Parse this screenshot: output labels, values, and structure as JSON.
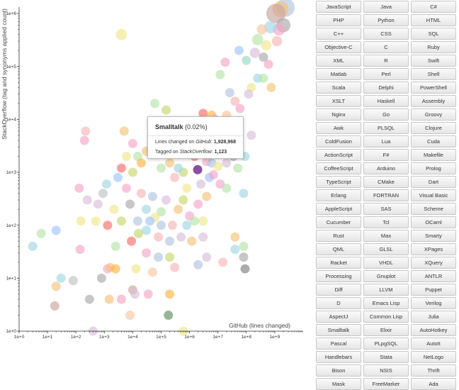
{
  "chart_data": {
    "type": "scatter",
    "xlabel": "GitHub (lines changed)",
    "ylabel": "StackOverflow (tag and synonyms applied count)",
    "x_scale": "log",
    "y_scale": "log",
    "xlim": [
      1,
      10000000000.0
    ],
    "ylim": [
      1,
      1000000.0
    ],
    "x_ticks": [
      "1e+0",
      "1e+1",
      "1e+2",
      "1e+3",
      "1e+4",
      "1e+5",
      "1e+6",
      "1e+7",
      "1e+8",
      "1e+9"
    ],
    "y_ticks": [
      "1e+0",
      "1e+1",
      "1e+2",
      "1e+3",
      "1e+4",
      "1e+5",
      "1e+6"
    ],
    "grid": false,
    "highlighted": {
      "name": "Smalltalk",
      "x": 1928968,
      "y": 1123,
      "color": "#7d3c98"
    },
    "points": [
      {
        "x": 2400000000.0,
        "y": 1300000.0,
        "color": "#b0c4de",
        "size": 18
      },
      {
        "x": 1600000000.0,
        "y": 1200000.0,
        "color": "#f4c27a",
        "size": 16
      },
      {
        "x": 1100000000.0,
        "y": 1000000.0,
        "color": "#c9a5a0",
        "size": 19
      },
      {
        "x": 2000000000.0,
        "y": 600000.0,
        "color": "#a9a9a9",
        "size": 14
      },
      {
        "x": 1400000000.0,
        "y": 500000.0,
        "color": "#f4a6c8",
        "size": 12
      },
      {
        "x": 700000000.0,
        "y": 550000.0,
        "color": "#9fd7e3",
        "size": 12
      },
      {
        "x": 350000000.0,
        "y": 500000.0,
        "color": "#f7c6a0",
        "size": 10
      },
      {
        "x": 250000000.0,
        "y": 320000.0,
        "color": "#b6e3a8",
        "size": 11
      },
      {
        "x": 1200000000.0,
        "y": 300000.0,
        "color": "#f7b6b6",
        "size": 10
      },
      {
        "x": 500000000.0,
        "y": 250000.0,
        "color": "#f0e68c",
        "size": 10
      },
      {
        "x": 200000000.0,
        "y": 180000.0,
        "color": "#d8bfd8",
        "size": 10
      },
      {
        "x": 400000000.0,
        "y": 150000.0,
        "color": "#a9a9a9",
        "size": 9
      },
      {
        "x": 100000000.0,
        "y": 130000.0,
        "color": "#98d8c8",
        "size": 9
      },
      {
        "x": 600000000.0,
        "y": 110000.0,
        "color": "#f4a6c8",
        "size": 9
      },
      {
        "x": 55000000.0,
        "y": 200000.0,
        "color": "#a0c4ff",
        "size": 9
      },
      {
        "x": 18000000.0,
        "y": 120000.0,
        "color": "#f4a6c8",
        "size": 9
      },
      {
        "x": 12000000.0,
        "y": 70000.0,
        "color": "#b6e3a8",
        "size": 9
      },
      {
        "x": 250000000.0,
        "y": 60000.0,
        "color": "#9fd7e3",
        "size": 9
      },
      {
        "x": 400000000.0,
        "y": 60000.0,
        "color": "#b6e3a8",
        "size": 9
      },
      {
        "x": 150000000.0,
        "y": 40000.0,
        "color": "#f0e68c",
        "size": 9
      },
      {
        "x": 750000000.0,
        "y": 40000.0,
        "color": "#f4c27a",
        "size": 9
      },
      {
        "x": 26000000.0,
        "y": 32000.0,
        "color": "#b0c4de",
        "size": 9
      },
      {
        "x": 120000000.0,
        "y": 30000.0,
        "color": "#d8bfd8",
        "size": 9
      },
      {
        "x": 40000000.0,
        "y": 22000.0,
        "color": "#f7b6b6",
        "size": 9
      },
      {
        "x": 60000000.0,
        "y": 16000.0,
        "color": "#f4a6c8",
        "size": 9
      },
      {
        "x": 20000000.0,
        "y": 12000.0,
        "color": "#f7c6a0",
        "size": 9
      },
      {
        "x": 3000000.0,
        "y": 13000.0,
        "color": "#ff6b6b",
        "size": 9
      },
      {
        "x": 6000000.0,
        "y": 12000.0,
        "color": "#ffb347",
        "size": 9
      },
      {
        "x": 8000000.0,
        "y": 10000.0,
        "color": "#f4a6c8",
        "size": 9
      },
      {
        "x": 150000.0,
        "y": 15000.0,
        "color": "#c5d86d",
        "size": 9
      },
      {
        "x": 30000000.0,
        "y": 8000.0,
        "color": "#c0e6f5",
        "size": 9
      },
      {
        "x": 45000000.0,
        "y": 7000.0,
        "color": "#a9a9a9",
        "size": 9
      },
      {
        "x": 150000000.0,
        "y": 5000.0,
        "color": "#d8bfd8",
        "size": 9
      },
      {
        "x": 5000000.0,
        "y": 6000.0,
        "color": "#f4a6c8",
        "size": 9
      },
      {
        "x": 2000000.0,
        "y": 4000.0,
        "color": "#f7b6b6",
        "size": 9
      },
      {
        "x": 300000.0,
        "y": 3000.0,
        "color": "#b6e3a8",
        "size": 9
      },
      {
        "x": 800000.0,
        "y": 2500.0,
        "color": "#f7c6a0",
        "size": 9
      },
      {
        "x": 1500000.0,
        "y": 2000.0,
        "color": "#ff6b6b",
        "size": 9
      },
      {
        "x": 4000000.0,
        "y": 1600.0,
        "color": "#f4a6c8",
        "size": 9
      },
      {
        "x": 6000000.0,
        "y": 1500.0,
        "color": "#b0c4de",
        "size": 9
      },
      {
        "x": 10000000.0,
        "y": 1300.0,
        "color": "#f0e68c",
        "size": 9
      },
      {
        "x": 20000000.0,
        "y": 1500.0,
        "color": "#d8bfd8",
        "size": 9
      },
      {
        "x": 35000000.0,
        "y": 2000.0,
        "color": "#a9a9a9",
        "size": 9
      },
      {
        "x": 90000000.0,
        "y": 2000.0,
        "color": "#9fd7e3",
        "size": 9
      },
      {
        "x": 9000000.0,
        "y": 2500.0,
        "color": "#ffb347",
        "size": 9
      },
      {
        "x": 200000.0,
        "y": 1500.0,
        "color": "#f4c27a",
        "size": 9
      },
      {
        "x": 100000.0,
        "y": 1200.0,
        "color": "#b6e3a8",
        "size": 9
      },
      {
        "x": 600000.0,
        "y": 1000.0,
        "color": "#c5d86d",
        "size": 9
      },
      {
        "x": 300000.0,
        "y": 800.0,
        "color": "#f7b6b6",
        "size": 9
      },
      {
        "x": 5000000.0,
        "y": 800.0,
        "color": "#a0c4ff",
        "size": 9
      },
      {
        "x": 12000000.0,
        "y": 600.0,
        "color": "#f4a6c8",
        "size": 9
      },
      {
        "x": 2500000.0,
        "y": 600.0,
        "color": "#d8bfd8",
        "size": 9
      },
      {
        "x": 800000.0,
        "y": 500.0,
        "color": "#f0e68c",
        "size": 9
      },
      {
        "x": 20000000.0,
        "y": 500.0,
        "color": "#b6e3a8",
        "size": 9
      },
      {
        "x": 80000000.0,
        "y": 400.0,
        "color": "#9fd7e3",
        "size": 9
      },
      {
        "x": 30000.0,
        "y": 2500.0,
        "color": "#f4c27a",
        "size": 9
      },
      {
        "x": 15000.0,
        "y": 2000.0,
        "color": "#b6e3a8",
        "size": 9
      },
      {
        "x": 6000.0,
        "y": 2000.0,
        "color": "#f0e68c",
        "size": 9
      },
      {
        "x": 20000.0,
        "y": 1500.0,
        "color": "#ffb347",
        "size": 9
      },
      {
        "x": 4000.0,
        "y": 1200.0,
        "color": "#ff6b6b",
        "size": 9
      },
      {
        "x": 10000.0,
        "y": 1000.0,
        "color": "#c5d86d",
        "size": 9
      },
      {
        "x": 3000.0,
        "y": 800.0,
        "color": "#a0c4ff",
        "size": 9
      },
      {
        "x": 1200.0,
        "y": 600.0,
        "color": "#9fd7e3",
        "size": 9
      },
      {
        "x": 6000.0,
        "y": 500.0,
        "color": "#f4a6c8",
        "size": 9
      },
      {
        "x": 20000.0,
        "y": 400.0,
        "color": "#f7b6b6",
        "size": 9
      },
      {
        "x": 50000.0,
        "y": 350.0,
        "color": "#b0c4de",
        "size": 9
      },
      {
        "x": 150000.0,
        "y": 300.0,
        "color": "#d8bfd8",
        "size": 9
      },
      {
        "x": 2200.0,
        "y": 200.0,
        "color": "#f0e68c",
        "size": 9
      },
      {
        "x": 600.0,
        "y": 250.0,
        "color": "#d8bfd8",
        "size": 9
      },
      {
        "x": 8000.0,
        "y": 250.0,
        "color": "#a9a9a9",
        "size": 9
      },
      {
        "x": 30000.0,
        "y": 200.0,
        "color": "#9fd7e3",
        "size": 9
      },
      {
        "x": 100000.0,
        "y": 180.0,
        "color": "#b6e3a8",
        "size": 9
      },
      {
        "x": 400000.0,
        "y": 200.0,
        "color": "#f4c27a",
        "size": 9
      },
      {
        "x": 1000000.0,
        "y": 150.0,
        "color": "#f4a6c8",
        "size": 9
      },
      {
        "x": 3000000.0,
        "y": 120.0,
        "color": "#f0e68c",
        "size": 9
      },
      {
        "x": 15000.0,
        "y": 120.0,
        "color": "#b0c4de",
        "size": 9
      },
      {
        "x": 4000.0,
        "y": 120.0,
        "color": "#c5d86d",
        "size": 9
      },
      {
        "x": 1300.0,
        "y": 100.0,
        "color": "#ff6b6b",
        "size": 9
      },
      {
        "x": 500.0,
        "y": 120.0,
        "color": "#f0e68c",
        "size": 9
      },
      {
        "x": 150.0,
        "y": 120.0,
        "color": "#f0e68c",
        "size": 9
      },
      {
        "x": 20.0,
        "y": 80.0,
        "color": "#a0c4ff",
        "size": 9
      },
      {
        "x": 6.0,
        "y": 70.0,
        "color": "#b6e3a8",
        "size": 9
      },
      {
        "x": 3.0,
        "y": 40.0,
        "color": "#9fd7e3",
        "size": 9
      },
      {
        "x": 140.0,
        "y": 35.0,
        "color": "#f4a6c8",
        "size": 9
      },
      {
        "x": 2500.0,
        "y": 40.0,
        "color": "#b6e3a8",
        "size": 9
      },
      {
        "x": 9000.0,
        "y": 50.0,
        "color": "#ff6b6b",
        "size": 9
      },
      {
        "x": 16000.0,
        "y": 70.0,
        "color": "#c5d86d",
        "size": 9
      },
      {
        "x": 30000.0,
        "y": 80.0,
        "color": "#9fd7e3",
        "size": 9
      },
      {
        "x": 80000.0,
        "y": 60.0,
        "color": "#f7b6b6",
        "size": 9
      },
      {
        "x": 200000.0,
        "y": 50.0,
        "color": "#b0c4de",
        "size": 9
      },
      {
        "x": 500000.0,
        "y": 60.0,
        "color": "#d8bfd8",
        "size": 9
      },
      {
        "x": 1200000.0,
        "y": 50.0,
        "color": "#f4c27a",
        "size": 9
      },
      {
        "x": 40000000.0,
        "y": 60.0,
        "color": "#f4c27a",
        "size": 9
      },
      {
        "x": 80000000.0,
        "y": 40.0,
        "color": "#b6e3a8",
        "size": 9
      },
      {
        "x": 40000000.0,
        "y": 35.0,
        "color": "#9fd7e3",
        "size": 9
      },
      {
        "x": 30000.0,
        "y": 30.0,
        "color": "#f4a6c8",
        "size": 9
      },
      {
        "x": 80000.0,
        "y": 25.0,
        "color": "#b0c4de",
        "size": 9
      },
      {
        "x": 200000.0,
        "y": 25.0,
        "color": "#c5d86d",
        "size": 9
      },
      {
        "x": 4000000.0,
        "y": 25.0,
        "color": "#d8bfd8",
        "size": 9
      },
      {
        "x": 15000000.0,
        "y": 20.0,
        "color": "#f7b6b6",
        "size": 9
      },
      {
        "x": 80000000.0,
        "y": 25.0,
        "color": "#a9a9a9",
        "size": 9
      },
      {
        "x": 90000000.0,
        "y": 15.0,
        "color": "#7f7f7f",
        "size": 9
      },
      {
        "x": 300000.0,
        "y": 16.0,
        "color": "#f7b6b6",
        "size": 9
      },
      {
        "x": 2000000.0,
        "y": 18.0,
        "color": "#b0c4de",
        "size": 9
      },
      {
        "x": 1300.0,
        "y": 15.0,
        "color": "#f4a6c8",
        "size": 9
      },
      {
        "x": 1600.0,
        "y": 16.0,
        "color": "#f4c27a",
        "size": 9
      },
      {
        "x": 2500.0,
        "y": 15.0,
        "color": "#ffb347",
        "size": 9
      },
      {
        "x": 13000.0,
        "y": 15.0,
        "color": "#f0e68c",
        "size": 9
      },
      {
        "x": 50000.0,
        "y": 13.0,
        "color": "#f7c6a0",
        "size": 9
      },
      {
        "x": 30.0,
        "y": 10.0,
        "color": "#9fd7e3",
        "size": 9
      },
      {
        "x": 800.0,
        "y": 10.0,
        "color": "#a9a9a9",
        "size": 9
      },
      {
        "x": 20.0,
        "y": 7.0,
        "color": "#f4c27a",
        "size": 9
      },
      {
        "x": 80.0,
        "y": 9.0,
        "color": "#c0c0c0",
        "size": 9
      },
      {
        "x": 10000.0,
        "y": 6.0,
        "color": "#c9a5a0",
        "size": 9
      },
      {
        "x": 12000.0,
        "y": 5.0,
        "color": "#d8bfd8",
        "size": 9
      },
      {
        "x": 35000.0,
        "y": 5.0,
        "color": "#f4a6c8",
        "size": 9
      },
      {
        "x": 200000.0,
        "y": 5.0,
        "color": "#ffb347",
        "size": 9
      },
      {
        "x": 300.0,
        "y": 4.0,
        "color": "#a9a9a9",
        "size": 9
      },
      {
        "x": 1500.0,
        "y": 4.0,
        "color": "#f4c27a",
        "size": 9
      },
      {
        "x": 4000.0,
        "y": 4.0,
        "color": "#f4a6c8",
        "size": 9
      },
      {
        "x": 18.0,
        "y": 3.0,
        "color": "#c9a5a0",
        "size": 9
      },
      {
        "x": 8000.0,
        "y": 2.0,
        "color": "#f7c6a0",
        "size": 9
      },
      {
        "x": 180000.0,
        "y": 2.0,
        "color": "#5f8f5f",
        "size": 9
      },
      {
        "x": 400.0,
        "y": 1.0,
        "color": "#d8bfd8",
        "size": 9
      },
      {
        "x": 600000.0,
        "y": 1.0,
        "color": "#f0e68c",
        "size": 9
      },
      {
        "x": 4000.0,
        "y": 400000.0,
        "color": "#f0e68c",
        "size": 11
      },
      {
        "x": 200.0,
        "y": 4000.0,
        "color": "#f4a6c8",
        "size": 9
      },
      {
        "x": 130.0,
        "y": 500.0,
        "color": "#f4a6c8",
        "size": 9
      },
      {
        "x": 250.0,
        "y": 300.0,
        "color": "#d8bfd8",
        "size": 9
      },
      {
        "x": 900.0,
        "y": 400.0,
        "color": "#c0c0c0",
        "size": 9
      },
      {
        "x": 220.0,
        "y": 6000.0,
        "color": "#f7b6b6",
        "size": 9
      },
      {
        "x": 60000.0,
        "y": 20000.0,
        "color": "#b6e3a8",
        "size": 9
      },
      {
        "x": 5000.0,
        "y": 6000.0,
        "color": "#f4c27a",
        "size": 9
      },
      {
        "x": 10000.0,
        "y": 3500.0,
        "color": "#f4a6c8",
        "size": 9
      },
      {
        "x": 1200000.0,
        "y": 3500.0,
        "color": "#d8bfd8",
        "size": 9
      },
      {
        "x": 30000000.0,
        "y": 3000.0,
        "color": "#f7c6a0",
        "size": 9
      },
      {
        "x": 50000000.0,
        "y": 1200.0,
        "color": "#b6e3a8",
        "size": 9
      },
      {
        "x": 7000000.0,
        "y": 900.0,
        "color": "#f4a6c8",
        "size": 9
      },
      {
        "x": 4000000.0,
        "y": 350.0,
        "color": "#f4c27a",
        "size": 9
      },
      {
        "x": 2000000.0,
        "y": 250.0,
        "color": "#f4a6c8",
        "size": 9
      },
      {
        "x": 600000.0,
        "y": 300.0,
        "color": "#c5d86d",
        "size": 9
      },
      {
        "x": 3000000.0,
        "y": 60.0,
        "color": "#d8bfd8",
        "size": 9
      },
      {
        "x": 800000.0,
        "y": 100.0,
        "color": "#9fd7e3",
        "size": 9
      },
      {
        "x": 250000.0,
        "y": 100.0,
        "color": "#f7b6b6",
        "size": 9
      },
      {
        "x": 100000.0,
        "y": 100.0,
        "color": "#b0c4de",
        "size": 9
      },
      {
        "x": 60000.0,
        "y": 140.0,
        "color": "#f0e68c",
        "size": 9
      },
      {
        "x": 40000.0,
        "y": 120.0,
        "color": "#a0c4ff",
        "size": 9
      },
      {
        "x": 400000.0,
        "y": 1200.0,
        "color": "#9fd7e3",
        "size": 9
      },
      {
        "x": 1500000.0,
        "y": 120.0,
        "color": "#b6e3a8",
        "size": 9
      }
    ]
  },
  "tooltip": {
    "name": "Smalltalk",
    "percent": "(0.02%)",
    "lines_label": "Lines changed on ",
    "lines_source": "GitHub",
    "lines_value": "1,928,968",
    "tagged_label": "Tagged on ",
    "tagged_source": "StackOverflow",
    "tagged_value": "1,123"
  },
  "languages": [
    "JavaScript",
    "Java",
    "C#",
    "PHP",
    "Python",
    "HTML",
    "C++",
    "CSS",
    "SQL",
    "Objective-C",
    "C",
    "Ruby",
    "XML",
    "R",
    "Swift",
    "Matlab",
    "Perl",
    "Shell",
    "Scala",
    "Delphi",
    "PowerShell",
    "XSLT",
    "Haskell",
    "Assembly",
    "Nginx",
    "Go",
    "Groovy",
    "Awk",
    "PLSQL",
    "Clojure",
    "ColdFusion",
    "Lua",
    "Cuda",
    "ActionScript",
    "F#",
    "Makefile",
    "CoffeeScript",
    "Arduino",
    "Prolog",
    "TypeScript",
    "CMake",
    "Dart",
    "Erlang",
    "FORTRAN",
    "Visual Basic",
    "AppleScript",
    "SAS",
    "Scheme",
    "Cucumber",
    "Tcl",
    "OCaml",
    "Rust",
    "Max",
    "Smarty",
    "QML",
    "GLSL",
    "XPages",
    "Racket",
    "VHDL",
    "XQuery",
    "Processing",
    "Gnuplot",
    "ANTLR",
    "Diff",
    "LLVM",
    "Puppet",
    "D",
    "Emacs Lisp",
    "Verilog",
    "AspectJ",
    "Common Lisp",
    "Julia",
    "Smalltalk",
    "Elixir",
    "AutoHotkey",
    "Pascal",
    "PLpgSQL",
    "AutoIt",
    "Handlebars",
    "Stata",
    "NetLogo",
    "Bison",
    "NSIS",
    "Thrift",
    "Mask",
    "FreeMarker",
    "Ada"
  ]
}
